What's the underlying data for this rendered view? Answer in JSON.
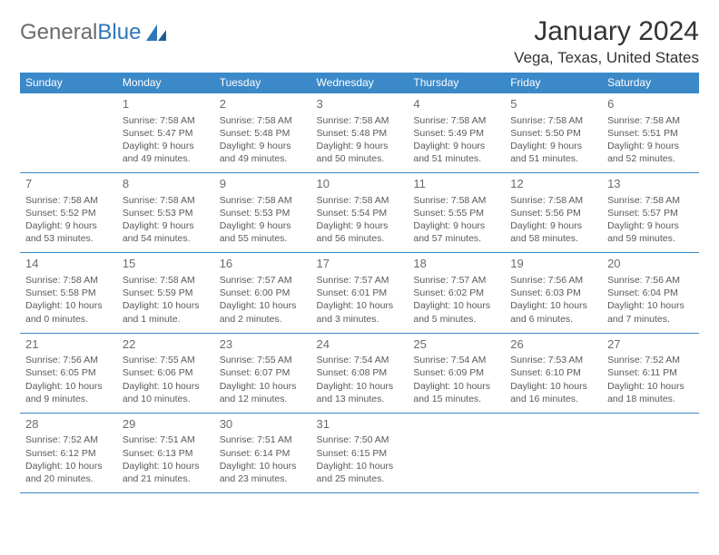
{
  "brand": {
    "part1": "General",
    "part2": "Blue"
  },
  "header": {
    "title": "January 2024",
    "location": "Vega, Texas, United States"
  },
  "colors": {
    "header_bg": "#3b89c9",
    "header_fg": "#ffffff",
    "rule": "#3b89c9",
    "text": "#5a5a5a",
    "title": "#333333",
    "logo_gray": "#6b6b6b",
    "logo_blue": "#2f77b9"
  },
  "fonts": {
    "title_pt": 30,
    "location_pt": 17,
    "day_header_pt": 12,
    "daynum_pt": 13,
    "body_pt": 10.5
  },
  "day_headers": [
    "Sunday",
    "Monday",
    "Tuesday",
    "Wednesday",
    "Thursday",
    "Friday",
    "Saturday"
  ],
  "weeks": [
    [
      {
        "num": "",
        "txt": ""
      },
      {
        "num": "1",
        "txt": "Sunrise: 7:58 AM\nSunset: 5:47 PM\nDaylight: 9 hours and 49 minutes."
      },
      {
        "num": "2",
        "txt": "Sunrise: 7:58 AM\nSunset: 5:48 PM\nDaylight: 9 hours and 49 minutes."
      },
      {
        "num": "3",
        "txt": "Sunrise: 7:58 AM\nSunset: 5:48 PM\nDaylight: 9 hours and 50 minutes."
      },
      {
        "num": "4",
        "txt": "Sunrise: 7:58 AM\nSunset: 5:49 PM\nDaylight: 9 hours and 51 minutes."
      },
      {
        "num": "5",
        "txt": "Sunrise: 7:58 AM\nSunset: 5:50 PM\nDaylight: 9 hours and 51 minutes."
      },
      {
        "num": "6",
        "txt": "Sunrise: 7:58 AM\nSunset: 5:51 PM\nDaylight: 9 hours and 52 minutes."
      }
    ],
    [
      {
        "num": "7",
        "txt": "Sunrise: 7:58 AM\nSunset: 5:52 PM\nDaylight: 9 hours and 53 minutes."
      },
      {
        "num": "8",
        "txt": "Sunrise: 7:58 AM\nSunset: 5:53 PM\nDaylight: 9 hours and 54 minutes."
      },
      {
        "num": "9",
        "txt": "Sunrise: 7:58 AM\nSunset: 5:53 PM\nDaylight: 9 hours and 55 minutes."
      },
      {
        "num": "10",
        "txt": "Sunrise: 7:58 AM\nSunset: 5:54 PM\nDaylight: 9 hours and 56 minutes."
      },
      {
        "num": "11",
        "txt": "Sunrise: 7:58 AM\nSunset: 5:55 PM\nDaylight: 9 hours and 57 minutes."
      },
      {
        "num": "12",
        "txt": "Sunrise: 7:58 AM\nSunset: 5:56 PM\nDaylight: 9 hours and 58 minutes."
      },
      {
        "num": "13",
        "txt": "Sunrise: 7:58 AM\nSunset: 5:57 PM\nDaylight: 9 hours and 59 minutes."
      }
    ],
    [
      {
        "num": "14",
        "txt": "Sunrise: 7:58 AM\nSunset: 5:58 PM\nDaylight: 10 hours and 0 minutes."
      },
      {
        "num": "15",
        "txt": "Sunrise: 7:58 AM\nSunset: 5:59 PM\nDaylight: 10 hours and 1 minute."
      },
      {
        "num": "16",
        "txt": "Sunrise: 7:57 AM\nSunset: 6:00 PM\nDaylight: 10 hours and 2 minutes."
      },
      {
        "num": "17",
        "txt": "Sunrise: 7:57 AM\nSunset: 6:01 PM\nDaylight: 10 hours and 3 minutes."
      },
      {
        "num": "18",
        "txt": "Sunrise: 7:57 AM\nSunset: 6:02 PM\nDaylight: 10 hours and 5 minutes."
      },
      {
        "num": "19",
        "txt": "Sunrise: 7:56 AM\nSunset: 6:03 PM\nDaylight: 10 hours and 6 minutes."
      },
      {
        "num": "20",
        "txt": "Sunrise: 7:56 AM\nSunset: 6:04 PM\nDaylight: 10 hours and 7 minutes."
      }
    ],
    [
      {
        "num": "21",
        "txt": "Sunrise: 7:56 AM\nSunset: 6:05 PM\nDaylight: 10 hours and 9 minutes."
      },
      {
        "num": "22",
        "txt": "Sunrise: 7:55 AM\nSunset: 6:06 PM\nDaylight: 10 hours and 10 minutes."
      },
      {
        "num": "23",
        "txt": "Sunrise: 7:55 AM\nSunset: 6:07 PM\nDaylight: 10 hours and 12 minutes."
      },
      {
        "num": "24",
        "txt": "Sunrise: 7:54 AM\nSunset: 6:08 PM\nDaylight: 10 hours and 13 minutes."
      },
      {
        "num": "25",
        "txt": "Sunrise: 7:54 AM\nSunset: 6:09 PM\nDaylight: 10 hours and 15 minutes."
      },
      {
        "num": "26",
        "txt": "Sunrise: 7:53 AM\nSunset: 6:10 PM\nDaylight: 10 hours and 16 minutes."
      },
      {
        "num": "27",
        "txt": "Sunrise: 7:52 AM\nSunset: 6:11 PM\nDaylight: 10 hours and 18 minutes."
      }
    ],
    [
      {
        "num": "28",
        "txt": "Sunrise: 7:52 AM\nSunset: 6:12 PM\nDaylight: 10 hours and 20 minutes."
      },
      {
        "num": "29",
        "txt": "Sunrise: 7:51 AM\nSunset: 6:13 PM\nDaylight: 10 hours and 21 minutes."
      },
      {
        "num": "30",
        "txt": "Sunrise: 7:51 AM\nSunset: 6:14 PM\nDaylight: 10 hours and 23 minutes."
      },
      {
        "num": "31",
        "txt": "Sunrise: 7:50 AM\nSunset: 6:15 PM\nDaylight: 10 hours and 25 minutes."
      },
      {
        "num": "",
        "txt": ""
      },
      {
        "num": "",
        "txt": ""
      },
      {
        "num": "",
        "txt": ""
      }
    ]
  ]
}
